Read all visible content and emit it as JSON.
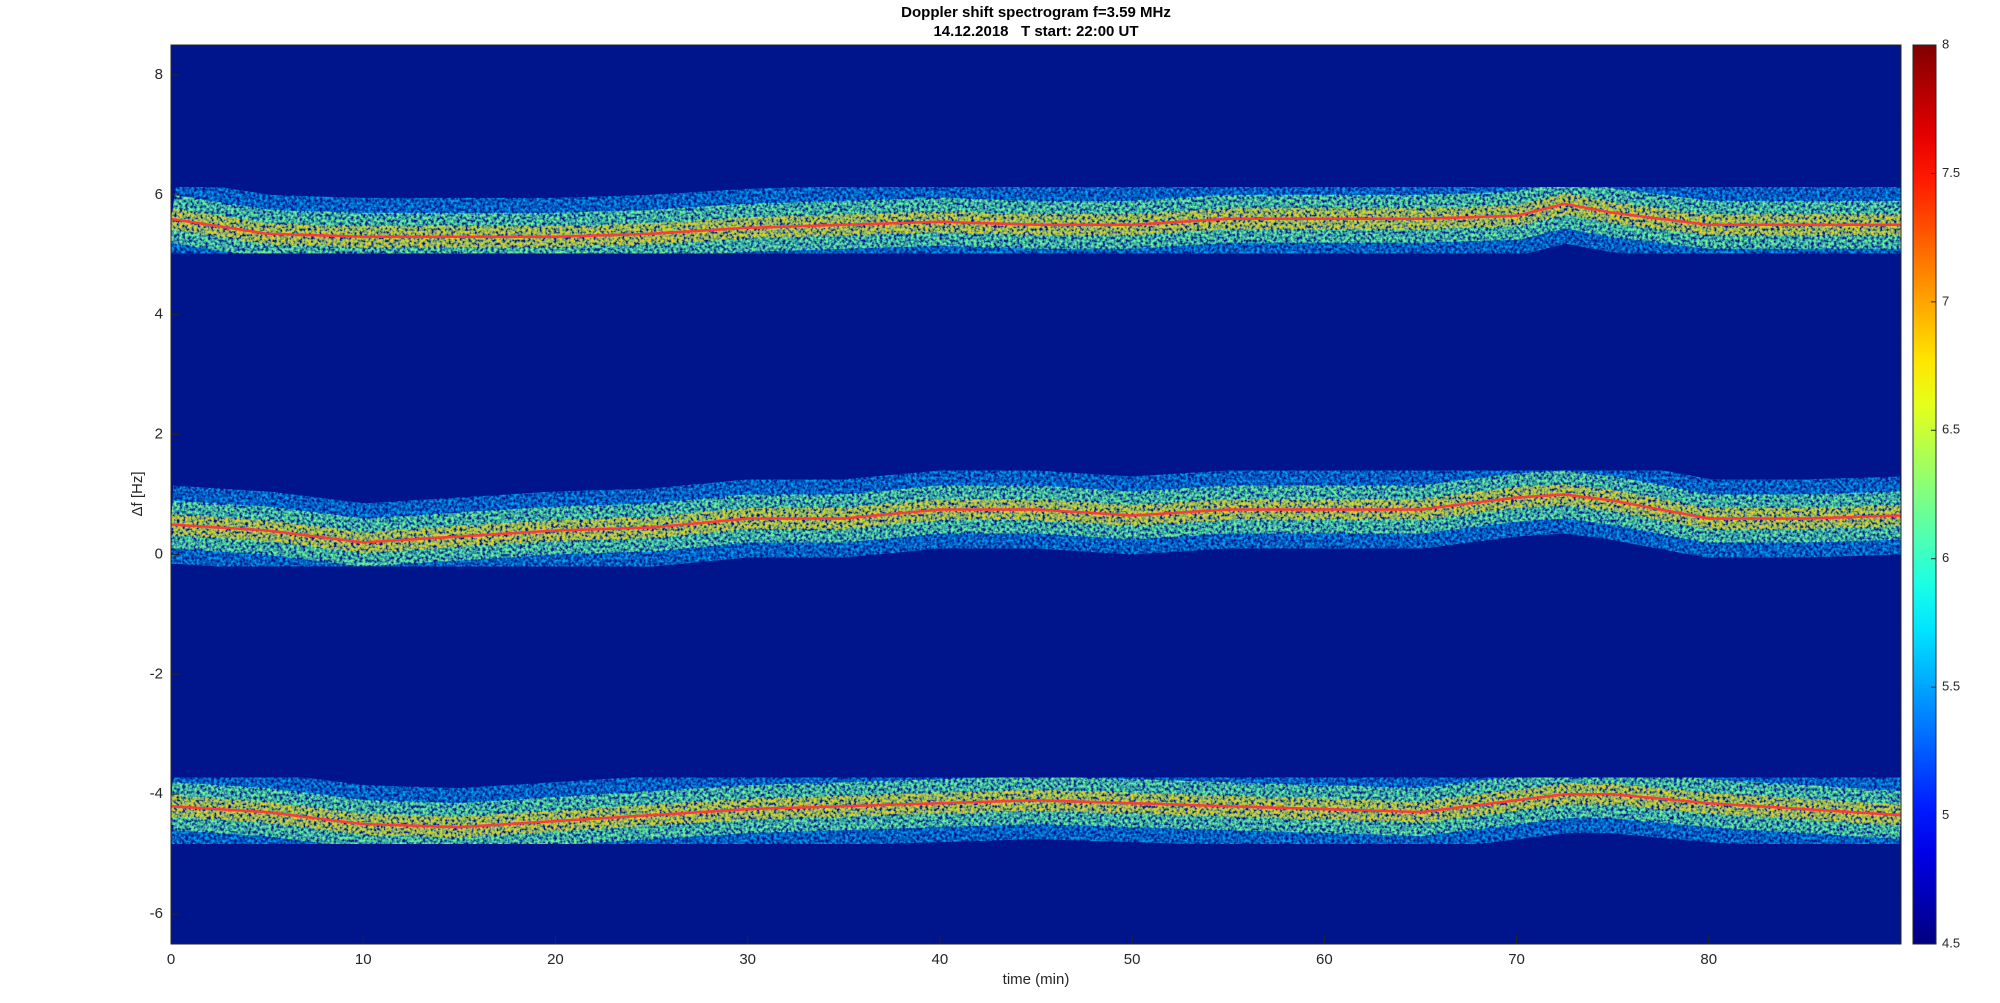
{
  "chart_data": {
    "type": "spectrogram",
    "title": "Doppler shift spectrogram f=3.59 MHz",
    "subtitle": "14.12.2018   T start: 22:00 UT",
    "x_label": "time (min)",
    "y_label": "Δf [Hz]",
    "xlim": [
      0,
      90
    ],
    "xticks": [
      0,
      10,
      20,
      30,
      40,
      50,
      60,
      70,
      80
    ],
    "ylim": [
      -6.5,
      8.5
    ],
    "yticks": [
      -6,
      -4,
      -2,
      0,
      2,
      4,
      6,
      8
    ],
    "colormap": "jet",
    "clim": [
      4.5,
      8
    ],
    "cticks": [
      4.5,
      5,
      5.5,
      6,
      6.5,
      7,
      7.5,
      8
    ],
    "background_color": "#00148c",
    "x": [
      0,
      5,
      10,
      15,
      20,
      25,
      30,
      35,
      40,
      45,
      50,
      55,
      60,
      65,
      70,
      72.5,
      75,
      80,
      85,
      90
    ],
    "series": [
      {
        "color": "#ff3a3a",
        "values": [
          5.6,
          5.35,
          5.3,
          5.3,
          5.3,
          5.35,
          5.45,
          5.5,
          5.55,
          5.5,
          5.5,
          5.6,
          5.6,
          5.6,
          5.65,
          5.85,
          5.7,
          5.5,
          5.5,
          5.5
        ]
      },
      {
        "color": "#ff3a3a",
        "values": [
          0.5,
          0.4,
          0.2,
          0.3,
          0.4,
          0.45,
          0.6,
          0.6,
          0.75,
          0.75,
          0.65,
          0.75,
          0.75,
          0.75,
          0.95,
          1.0,
          0.9,
          0.6,
          0.6,
          0.65
        ]
      },
      {
        "color": "#ff3a3a",
        "values": [
          -4.2,
          -4.3,
          -4.5,
          -4.55,
          -4.45,
          -4.35,
          -4.25,
          -4.2,
          -4.15,
          -4.1,
          -4.15,
          -4.2,
          -4.25,
          -4.3,
          -4.1,
          -4.0,
          -4.0,
          -4.15,
          -4.25,
          -4.35
        ]
      }
    ]
  }
}
